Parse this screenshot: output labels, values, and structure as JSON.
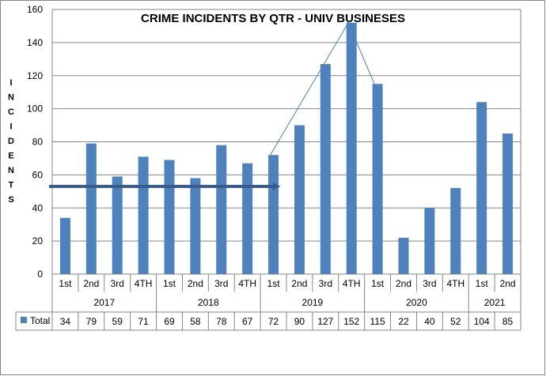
{
  "chart_data": {
    "type": "bar",
    "title": "CRIME INCIDENTS BY QTR - UNIV BUSINESES",
    "ylabel": "INCIDENTS",
    "xlabel": "",
    "ylim": [
      0,
      160
    ],
    "yticks": [
      0,
      20,
      40,
      60,
      80,
      100,
      120,
      140,
      160
    ],
    "grid": true,
    "legend": "data-table",
    "groups": [
      {
        "year": "2017",
        "quarters": [
          "1st",
          "2nd",
          "3rd",
          "4TH"
        ]
      },
      {
        "year": "2018",
        "quarters": [
          "1st",
          "2nd",
          "3rd",
          "4TH"
        ]
      },
      {
        "year": "2019",
        "quarters": [
          "1st",
          "2nd",
          "3rd",
          "4TH"
        ]
      },
      {
        "year": "2020",
        "quarters": [
          "1st",
          "2nd",
          "3rd",
          "4TH"
        ]
      },
      {
        "year": "2021",
        "quarters": [
          "1st",
          "2nd"
        ]
      }
    ],
    "series": [
      {
        "name": "Total",
        "color": "#4F81BD",
        "values": [
          34,
          79,
          59,
          71,
          69,
          58,
          78,
          67,
          72,
          90,
          127,
          152,
          115,
          22,
          40,
          52,
          104,
          85
        ]
      }
    ],
    "annotations": {
      "arrow": {
        "from_index": 0,
        "to_index": 8,
        "value": 53,
        "color": "#385D8A"
      },
      "trend_line": {
        "indices": [
          8,
          11,
          12
        ],
        "color": "#4F81BD"
      }
    }
  }
}
